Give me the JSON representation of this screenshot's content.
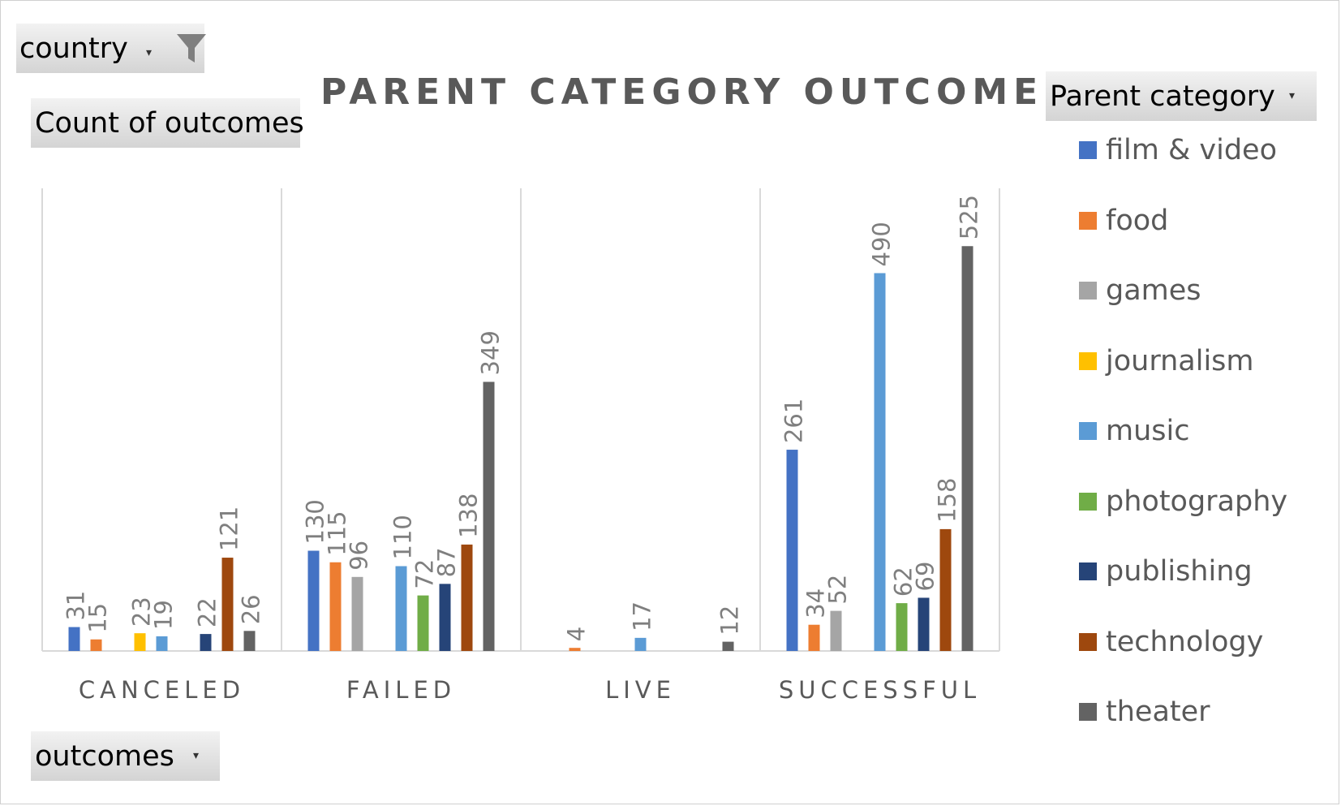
{
  "filters": {
    "country_label": "country",
    "values_label": "Count of outcomes",
    "axis_field_label": "outcomes",
    "legend_field_label": "Parent category"
  },
  "icons": {
    "filter": "funnel-icon",
    "dropdown": "dropdown-arrow-icon"
  },
  "chart_data": {
    "type": "bar",
    "title": "PARENT CATEGORY OUTCOME",
    "xlabel": "",
    "ylabel": "",
    "ylim": [
      0,
      600
    ],
    "grid": false,
    "legend_position": "right",
    "categories": [
      "CANCELED",
      "FAILED",
      "LIVE",
      "SUCCESSFUL"
    ],
    "series": [
      {
        "name": "film & video",
        "color": "#4472C4",
        "values": [
          31,
          130,
          null,
          261
        ]
      },
      {
        "name": "food",
        "color": "#ED7D31",
        "values": [
          15,
          115,
          4,
          34
        ]
      },
      {
        "name": "games",
        "color": "#A5A5A5",
        "values": [
          null,
          96,
          null,
          52
        ]
      },
      {
        "name": "journalism",
        "color": "#FFC000",
        "values": [
          23,
          null,
          null,
          null
        ]
      },
      {
        "name": "music",
        "color": "#5B9BD5",
        "values": [
          19,
          110,
          17,
          490
        ]
      },
      {
        "name": "photography",
        "color": "#70AD47",
        "values": [
          null,
          72,
          null,
          62
        ]
      },
      {
        "name": "publishing",
        "color": "#264478",
        "values": [
          22,
          87,
          null,
          69
        ]
      },
      {
        "name": "technology",
        "color": "#9E480E",
        "values": [
          121,
          138,
          null,
          158
        ]
      },
      {
        "name": "theater",
        "color": "#636363",
        "values": [
          26,
          349,
          12,
          525
        ]
      }
    ]
  }
}
